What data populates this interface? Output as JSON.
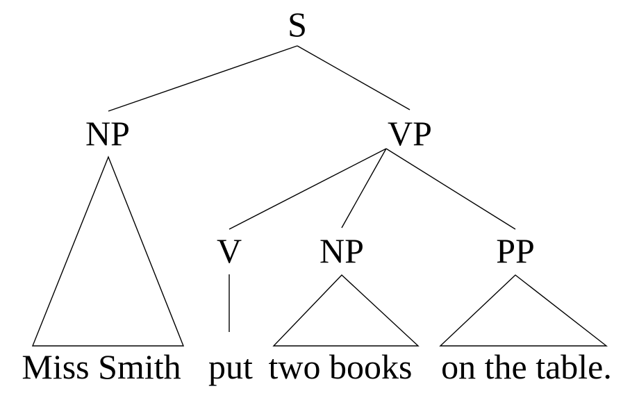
{
  "tree": {
    "root_label": "S",
    "subject_np_label": "NP",
    "vp_label": "VP",
    "verb_label": "V",
    "object_np_label": "NP",
    "pp_label": "PP"
  },
  "words": {
    "subject": "Miss Smith",
    "verb": "put",
    "object": "two books",
    "pp": "on the table."
  }
}
